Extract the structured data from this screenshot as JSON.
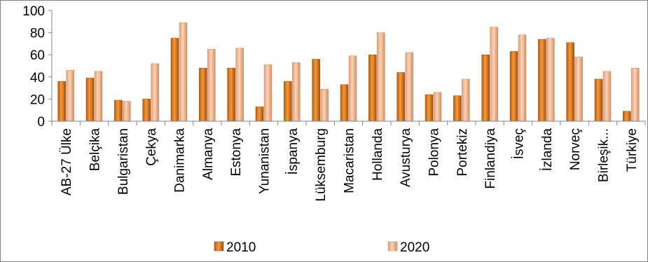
{
  "chart_data": {
    "type": "bar",
    "title": "",
    "xlabel": "",
    "ylabel": "",
    "ylim": [
      0,
      100
    ],
    "yticks": [
      0,
      20,
      40,
      60,
      80,
      100
    ],
    "grid": false,
    "legend_position": "bottom",
    "categories": [
      "AB-27 Ülke",
      "Belçika",
      "Bulgaristan",
      "Çekya",
      "Danimarka",
      "Almanya",
      "Estonya",
      "Yunanistan",
      "İspanya",
      "Lüksemburg",
      "Macaristan",
      "Hollanda",
      "Avusturya",
      "Polonya",
      "Portekiz",
      "Finlandiya",
      "İsveç",
      "İzlanda",
      "Norveç",
      "Birleşik...",
      "Türkiye"
    ],
    "series": [
      {
        "name": "2010",
        "color": "#e46c0a",
        "values": [
          36,
          39,
          19,
          20,
          75,
          48,
          48,
          13,
          36,
          56,
          33,
          60,
          44,
          24,
          23,
          60,
          63,
          74,
          71,
          38,
          9
        ]
      },
      {
        "name": "2020",
        "color": "#f4b183",
        "values": [
          46,
          45,
          18,
          52,
          89,
          65,
          66,
          51,
          53,
          29,
          59,
          80,
          62,
          26,
          38,
          85,
          78,
          75,
          58,
          45,
          48
        ]
      }
    ]
  }
}
